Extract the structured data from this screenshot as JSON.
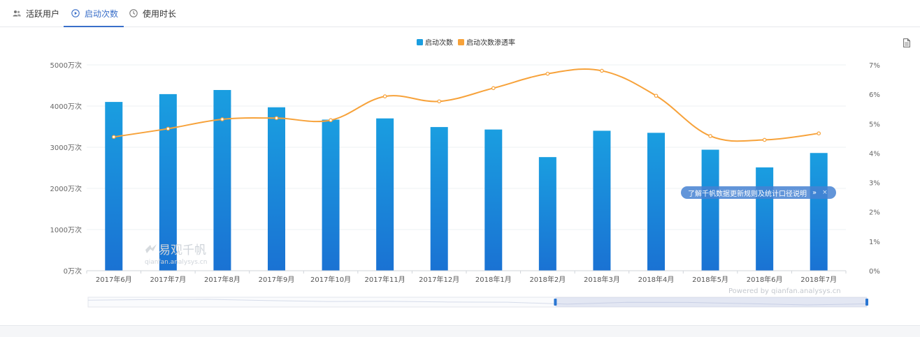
{
  "tabs": [
    {
      "label": "活跃用户",
      "icon": "users-icon",
      "active": false
    },
    {
      "label": "启动次数",
      "icon": "play-circle-icon",
      "active": true
    },
    {
      "label": "使用时长",
      "icon": "clock-icon",
      "active": false
    }
  ],
  "notice": {
    "text": "了解千帆数据更新规则及统计口径说明",
    "arrow": "»",
    "close": "×"
  },
  "powered": "Powered by qianfan.analysys.cn",
  "watermark": {
    "brand": "易观千帆",
    "url": "qianfan.analysys.cn"
  },
  "colors": {
    "bar_top": "#1a9ee0",
    "bar_bottom": "#1a72d3",
    "line": "#f7a23a",
    "accent": "#3a6fc9"
  },
  "chart_data": {
    "type": "bar",
    "categories": [
      "2017年6月",
      "2017年7月",
      "2017年8月",
      "2017年9月",
      "2017年10月",
      "2017年11月",
      "2017年12月",
      "2018年1月",
      "2018年2月",
      "2018年3月",
      "2018年4月",
      "2018年5月",
      "2018年6月",
      "2018年7月"
    ],
    "series": [
      {
        "name": "启动次数",
        "type": "bar",
        "axis": "left",
        "values": [
          4100,
          4290,
          4390,
          3970,
          3670,
          3700,
          3490,
          3430,
          2760,
          3400,
          3350,
          2940,
          2510,
          2860
        ]
      },
      {
        "name": "启动次数渗透率",
        "type": "line",
        "axis": "right",
        "values": [
          4.55,
          4.83,
          5.15,
          5.19,
          5.12,
          5.93,
          5.76,
          6.21,
          6.7,
          6.8,
          5.95,
          4.58,
          4.45,
          4.67
        ]
      }
    ],
    "yAxisLeft": {
      "min": 0,
      "max": 5000,
      "ticks": [
        0,
        1000,
        2000,
        3000,
        4000,
        5000
      ],
      "tick_labels": [
        "0万次",
        "1000万次",
        "2000万次",
        "3000万次",
        "4000万次",
        "5000万次"
      ]
    },
    "yAxisRight": {
      "min": 0,
      "max": 7,
      "ticks": [
        0,
        1,
        2,
        3,
        4,
        5,
        6,
        7
      ],
      "tick_labels": [
        "0%",
        "1%",
        "2%",
        "3%",
        "4%",
        "5%",
        "6%",
        "7%"
      ]
    },
    "legend_position": "top-center",
    "grid": true,
    "zoom_range": [
      0.6,
      1.0
    ]
  }
}
